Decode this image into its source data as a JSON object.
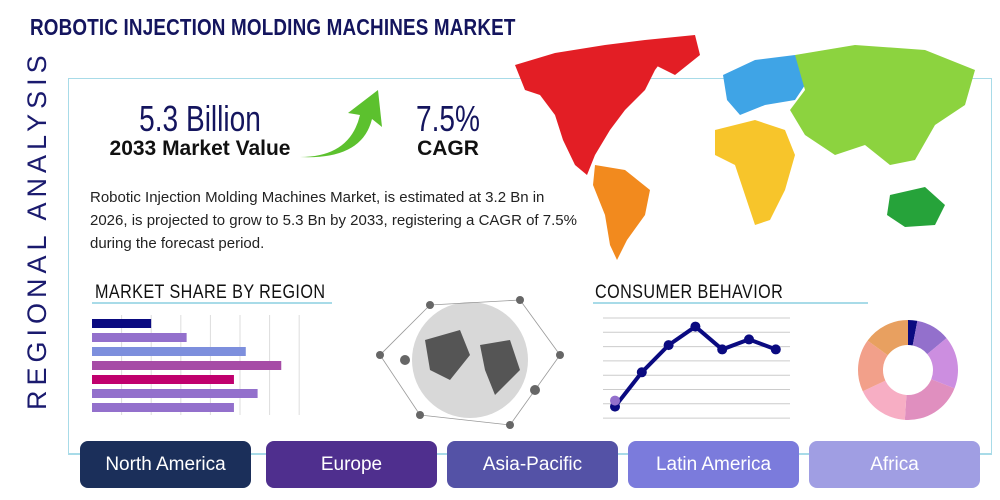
{
  "title": "ROBOTIC INJECTION MOLDING MACHINES MARKET",
  "side_label": "REGIONAL ANALYSIS",
  "market_value": {
    "value": "5.3 Billion",
    "label": "2033 Market Value"
  },
  "cagr": {
    "value": "7.5%",
    "label": "CAGR"
  },
  "description": "Robotic Injection Molding Machines Market, is estimated at 3.2 Bn in 2026, is projected to grow to 5.3 Bn by 2033, registering a CAGR of 7.5% during the forecast period.",
  "sections": {
    "market_share": "MARKET SHARE BY REGION",
    "consumer": "CONSUMER BEHAVIOR"
  },
  "regions": [
    {
      "label": "North America",
      "color": "#1b2f5a"
    },
    {
      "label": "Europe",
      "color": "#4f2f8e"
    },
    {
      "label": "Asia-Pacific",
      "color": "#5452a6"
    },
    {
      "label": "Latin America",
      "color": "#7b7bdc"
    },
    {
      "label": "Africa",
      "color": "#a09ee3"
    }
  ],
  "chart_data": [
    {
      "type": "bar",
      "orientation": "horizontal",
      "values": [
        2.0,
        3.2,
        5.2,
        6.4,
        4.8,
        5.6,
        4.8
      ],
      "colors": [
        "#0a0a80",
        "#9370cc",
        "#7d8fdd",
        "#a64ca6",
        "#c0006e",
        "#9370cc",
        "#9370cc"
      ],
      "xlim": [
        0,
        7
      ],
      "grid": true
    },
    {
      "type": "line",
      "values": [
        0.8,
        3.2,
        5.1,
        6.4,
        4.8,
        5.5,
        4.8
      ],
      "color": "#0a0a80",
      "ylim": [
        0,
        7
      ],
      "grid": true
    },
    {
      "type": "pie",
      "donut": true,
      "values": [
        3,
        11,
        17,
        20,
        17,
        17,
        15
      ],
      "colors": [
        "#0a0a80",
        "#9370cc",
        "#cc8ee0",
        "#e08fbf",
        "#f7aec4",
        "#f2a08a",
        "#e8a060"
      ]
    }
  ]
}
